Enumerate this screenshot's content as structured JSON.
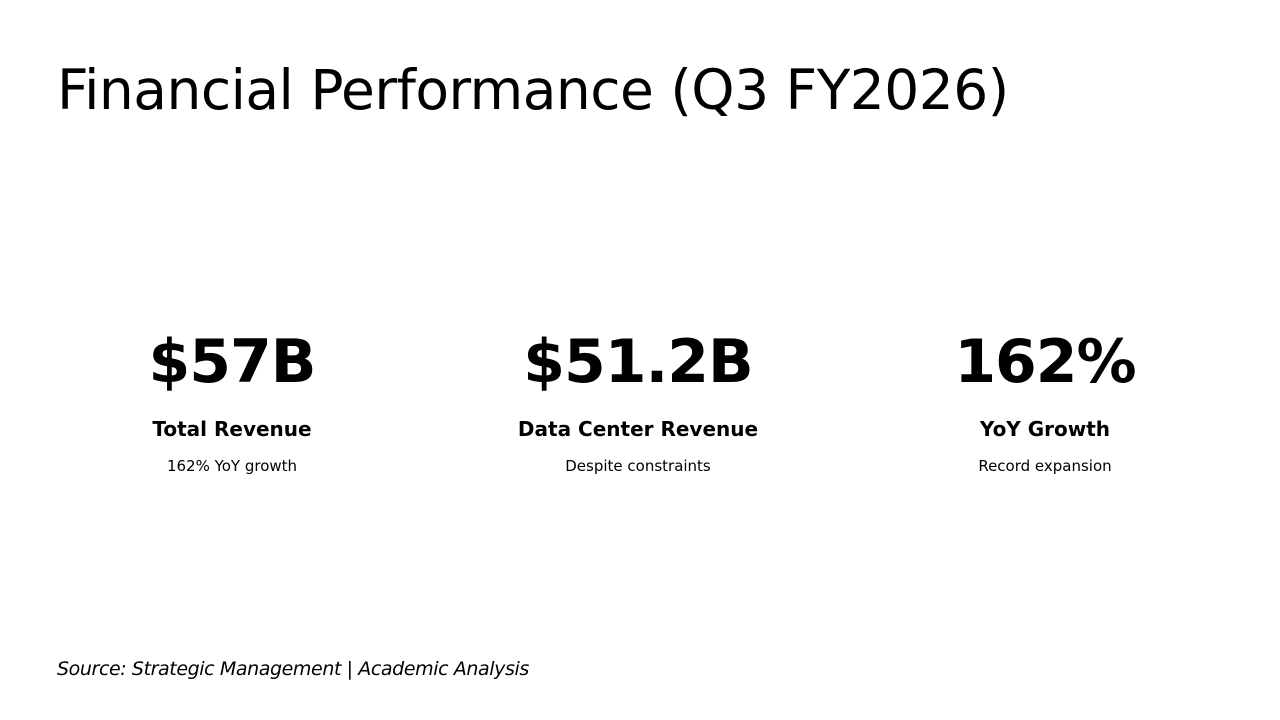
{
  "slide": {
    "title": "Financial Performance (Q3 FY2026)",
    "metrics": [
      {
        "value": "$57B",
        "label": "Total Revenue",
        "description": "162% YoY growth"
      },
      {
        "value": "$51.2B",
        "label": "Data Center Revenue",
        "description": "Despite constraints"
      },
      {
        "value": "162%",
        "label": "YoY Growth",
        "description": "Record expansion"
      }
    ],
    "source": "Source: Strategic Management | Academic Analysis"
  }
}
